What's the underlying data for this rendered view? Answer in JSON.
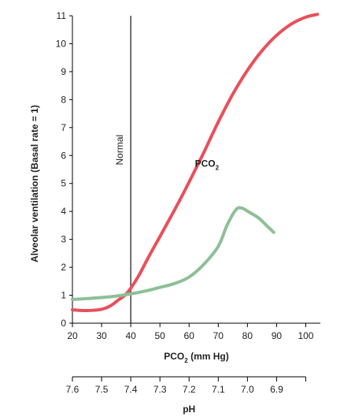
{
  "chart_data": {
    "type": "line",
    "ylabel": "Alveolar ventilation (Basal rate = 1)",
    "xlabel_main": "PCO",
    "xlabel_sub": "2",
    "xlabel_unit": " (mm Hg)",
    "xlabel_secondary": "pH",
    "xlim": [
      20,
      105
    ],
    "ylim": [
      0,
      11
    ],
    "x_ticks": [
      20,
      30,
      40,
      50,
      60,
      70,
      80,
      90,
      100
    ],
    "y_ticks": [
      0,
      1,
      2,
      3,
      4,
      5,
      6,
      7,
      8,
      9,
      10,
      11
    ],
    "ph_ticks": [
      {
        "x": 20,
        "label": "7.6"
      },
      {
        "x": 30,
        "label": "7.5"
      },
      {
        "x": 40,
        "label": "7.4"
      },
      {
        "x": 50,
        "label": "7.3"
      },
      {
        "x": 60,
        "label": "7.2"
      },
      {
        "x": 70,
        "label": "7.1"
      },
      {
        "x": 80,
        "label": "7.0"
      },
      {
        "x": 90,
        "label": "6.9"
      }
    ],
    "normal_line": {
      "x": 40,
      "label": "Normal"
    },
    "series": [
      {
        "label_main": "PCO",
        "label_sub": "2",
        "color": "#e8505b",
        "points": [
          [
            20,
            0.48
          ],
          [
            25,
            0.45
          ],
          [
            30,
            0.5
          ],
          [
            33,
            0.62
          ],
          [
            36,
            0.85
          ],
          [
            38,
            1.0
          ],
          [
            40,
            1.25
          ],
          [
            43,
            1.75
          ],
          [
            46,
            2.35
          ],
          [
            50,
            3.1
          ],
          [
            55,
            4.05
          ],
          [
            60,
            5.05
          ],
          [
            65,
            6.1
          ],
          [
            70,
            7.2
          ],
          [
            75,
            8.2
          ],
          [
            80,
            9.05
          ],
          [
            85,
            9.75
          ],
          [
            90,
            10.3
          ],
          [
            95,
            10.7
          ],
          [
            100,
            10.95
          ],
          [
            104,
            11.05
          ]
        ]
      },
      {
        "color": "#8dbf96",
        "points": [
          [
            20,
            0.85
          ],
          [
            25,
            0.88
          ],
          [
            30,
            0.92
          ],
          [
            35,
            0.97
          ],
          [
            40,
            1.05
          ],
          [
            45,
            1.15
          ],
          [
            50,
            1.28
          ],
          [
            55,
            1.42
          ],
          [
            60,
            1.65
          ],
          [
            65,
            2.1
          ],
          [
            70,
            2.75
          ],
          [
            73,
            3.5
          ],
          [
            76,
            4.05
          ],
          [
            78,
            4.12
          ],
          [
            81,
            3.95
          ],
          [
            84,
            3.75
          ],
          [
            87,
            3.45
          ],
          [
            89,
            3.25
          ]
        ]
      }
    ]
  }
}
